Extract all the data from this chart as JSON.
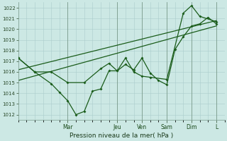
{
  "xlabel": "Pression niveau de la mer( hPa )",
  "bg_color": "#cce8e4",
  "grid_color": "#aacccc",
  "line_color": "#1a5c1a",
  "ylim": [
    1011.5,
    1022.5
  ],
  "yticks": [
    1012,
    1013,
    1014,
    1015,
    1016,
    1017,
    1018,
    1019,
    1020,
    1021,
    1022
  ],
  "day_labels": [
    "Mar",
    "Jeu",
    "Ven",
    "Sam",
    "Dim",
    "L"
  ],
  "day_positions": [
    24,
    48,
    60,
    72,
    84,
    96
  ],
  "xlim": [
    0,
    100
  ],
  "xminor": 4,
  "series1_x": [
    0,
    8,
    16,
    20,
    24,
    28,
    32,
    36,
    40,
    44,
    48,
    52,
    56,
    60,
    64,
    68,
    72,
    76,
    80,
    84,
    88,
    92,
    96
  ],
  "series1_y": [
    1017.3,
    1016.0,
    1014.9,
    1014.1,
    1013.3,
    1012.0,
    1012.3,
    1014.2,
    1014.4,
    1016.1,
    1016.1,
    1016.7,
    1016.2,
    1017.3,
    1015.9,
    1015.2,
    1014.8,
    1018.1,
    1019.3,
    1020.3,
    1020.5,
    1021.1,
    1020.5
  ],
  "series2_x": [
    0,
    8,
    16,
    24,
    32,
    40,
    44,
    48,
    52,
    56,
    60,
    64,
    72,
    80,
    84,
    88,
    96
  ],
  "series2_y": [
    1017.3,
    1016.0,
    1016.0,
    1015.0,
    1015.0,
    1016.3,
    1016.8,
    1016.1,
    1017.3,
    1016.0,
    1015.6,
    1015.5,
    1015.3,
    1021.5,
    1022.2,
    1021.2,
    1020.7
  ],
  "trend1_x": [
    0,
    96
  ],
  "trend1_y": [
    1015.2,
    1020.3
  ],
  "trend2_x": [
    0,
    96
  ],
  "trend2_y": [
    1016.2,
    1020.8
  ]
}
